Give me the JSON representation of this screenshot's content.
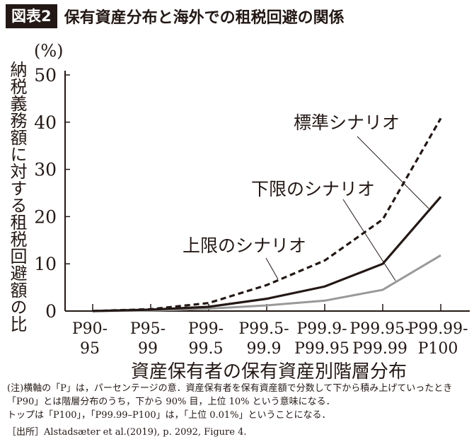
{
  "figure_label": "図表2",
  "title": "保有資産分布と海外での租税回避の関係",
  "chart_data": {
    "type": "line",
    "ylabel": "納税義務額に対する租税回避額の比",
    "yunit": "(%)",
    "xlabel": "資産保有者の保有資産別階層分布",
    "categories": [
      [
        "P90-",
        "95"
      ],
      [
        "P95-",
        "99"
      ],
      [
        "P99-",
        "99.5"
      ],
      [
        "P99.5-",
        "99.9"
      ],
      [
        "P99.9-",
        "P99.95"
      ],
      [
        "P99.95-",
        "P99.99"
      ],
      [
        "P99.99-",
        "P100"
      ]
    ],
    "ylim": [
      0,
      50
    ],
    "yticks": [
      "0",
      "10",
      "20",
      "30",
      "40",
      "50"
    ],
    "grid": false,
    "series": [
      {
        "name": "上限のシナリオ",
        "style": "dashed",
        "color": "#231815",
        "values": [
          0,
          0.4,
          1.7,
          5.5,
          10.7,
          19.4,
          40.8
        ]
      },
      {
        "name": "標準シナリオ",
        "style": "solid",
        "color": "#231815",
        "values": [
          0,
          0.3,
          0.9,
          2.6,
          5.2,
          10.0,
          24.2
        ]
      },
      {
        "name": "下限のシナリオ",
        "style": "solid",
        "color": "#999999",
        "values": [
          0,
          0.1,
          0.5,
          1.2,
          2.2,
          4.5,
          11.8
        ]
      }
    ]
  },
  "notes": [
    "(注)横軸の「P」は，パーセンテージの意．資産保有者を保有資産額で分数して下から積み上げていったとき",
    "「P90」とは階層分布のうち，下から 90% 目，上位 10% という意味になる．",
    "トップは「P100」，「P99.99–P100」は，「上位 0.01%」ということになる．"
  ],
  "source": "［出所］Alstadsæter et al.(2019), p. 2092, Figure 4."
}
